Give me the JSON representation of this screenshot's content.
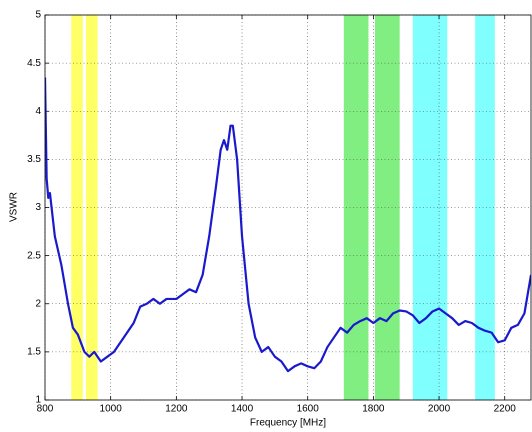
{
  "chart_data": {
    "type": "line",
    "x_label": "Frequency [MHz]",
    "y_label": "VSWR",
    "xlim": [
      800,
      2280
    ],
    "ylim": [
      1,
      5
    ],
    "xticks": [
      800,
      1000,
      1200,
      1400,
      1600,
      1800,
      2000,
      2200
    ],
    "yticks": [
      1,
      1.5,
      2,
      2.5,
      3,
      3.5,
      4,
      4.5,
      5
    ],
    "grid": true,
    "bands": [
      {
        "range": [
          880,
          915
        ],
        "color": "#ffff66"
      },
      {
        "range": [
          925,
          960
        ],
        "color": "#ffff66"
      },
      {
        "range": [
          1710,
          1785
        ],
        "color": "#80ee80"
      },
      {
        "range": [
          1805,
          1880
        ],
        "color": "#80ee80"
      },
      {
        "range": [
          1920,
          2025
        ],
        "color": "#80ffff"
      },
      {
        "range": [
          2110,
          2170
        ],
        "color": "#80ffff"
      }
    ],
    "x": [
      800,
      805,
      810,
      815,
      820,
      830,
      850,
      870,
      885,
      900,
      920,
      935,
      950,
      970,
      990,
      1010,
      1030,
      1050,
      1070,
      1090,
      1110,
      1130,
      1150,
      1170,
      1200,
      1220,
      1240,
      1260,
      1280,
      1300,
      1320,
      1335,
      1345,
      1355,
      1365,
      1372,
      1385,
      1400,
      1420,
      1440,
      1460,
      1480,
      1500,
      1520,
      1540,
      1560,
      1580,
      1600,
      1620,
      1640,
      1660,
      1680,
      1700,
      1720,
      1740,
      1760,
      1780,
      1800,
      1820,
      1840,
      1860,
      1880,
      1900,
      1920,
      1940,
      1960,
      1980,
      2000,
      2020,
      2040,
      2060,
      2080,
      2100,
      2120,
      2140,
      2160,
      2180,
      2200,
      2220,
      2240,
      2260,
      2280
    ],
    "series": [
      {
        "color": "#1a1acc",
        "values": [
          4.35,
          3.3,
          3.1,
          3.15,
          3.0,
          2.7,
          2.4,
          2.0,
          1.75,
          1.68,
          1.5,
          1.45,
          1.5,
          1.4,
          1.45,
          1.5,
          1.6,
          1.7,
          1.8,
          1.97,
          2.0,
          2.05,
          2.0,
          2.05,
          2.05,
          2.1,
          2.15,
          2.12,
          2.3,
          2.7,
          3.2,
          3.6,
          3.7,
          3.6,
          3.85,
          3.85,
          3.5,
          2.7,
          2.0,
          1.65,
          1.5,
          1.55,
          1.45,
          1.4,
          1.3,
          1.35,
          1.38,
          1.35,
          1.33,
          1.4,
          1.55,
          1.65,
          1.75,
          1.7,
          1.78,
          1.82,
          1.85,
          1.8,
          1.85,
          1.82,
          1.9,
          1.93,
          1.92,
          1.88,
          1.8,
          1.85,
          1.92,
          1.95,
          1.9,
          1.85,
          1.78,
          1.82,
          1.8,
          1.75,
          1.72,
          1.7,
          1.6,
          1.62,
          1.75,
          1.78,
          1.9,
          2.3
        ]
      }
    ]
  }
}
